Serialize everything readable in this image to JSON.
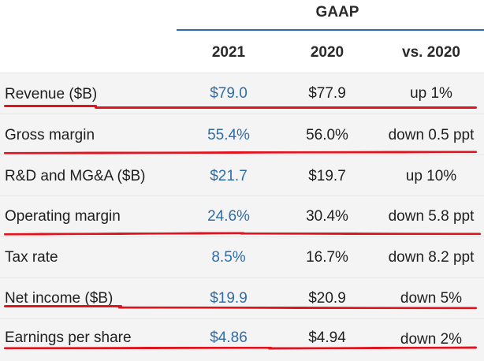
{
  "header": {
    "group_label": "GAAP",
    "columns": [
      "2021",
      "2020",
      "vs. 2020"
    ]
  },
  "rows": [
    {
      "label": "Revenue ($B)",
      "y2021": "$79.0",
      "y2020": "$77.9",
      "change": "up 1%"
    },
    {
      "label": "Gross margin",
      "y2021": "55.4%",
      "y2020": "56.0%",
      "change": "down 0.5 ppt"
    },
    {
      "label": "R&D and MG&A ($B)",
      "y2021": "$21.7",
      "y2020": "$19.7",
      "change": "up 10%"
    },
    {
      "label": "Operating margin",
      "y2021": "24.6%",
      "y2020": "30.4%",
      "change": "down 5.8 ppt"
    },
    {
      "label": "Tax rate",
      "y2021": "8.5%",
      "y2020": "16.7%",
      "change": "down 8.2 ppt"
    },
    {
      "label": "Net income ($B)",
      "y2021": "$19.9",
      "y2020": "$20.9",
      "change": "down 5%"
    },
    {
      "label": "Earnings per share",
      "y2021": "$4.86",
      "y2020": "$4.94",
      "change": "down 2%"
    }
  ],
  "colors": {
    "accent_blue": "#2e6da8",
    "header_rule": "#2d6ea8",
    "annotation_red": "#e0141e",
    "row_background": "#f4f4f4"
  }
}
